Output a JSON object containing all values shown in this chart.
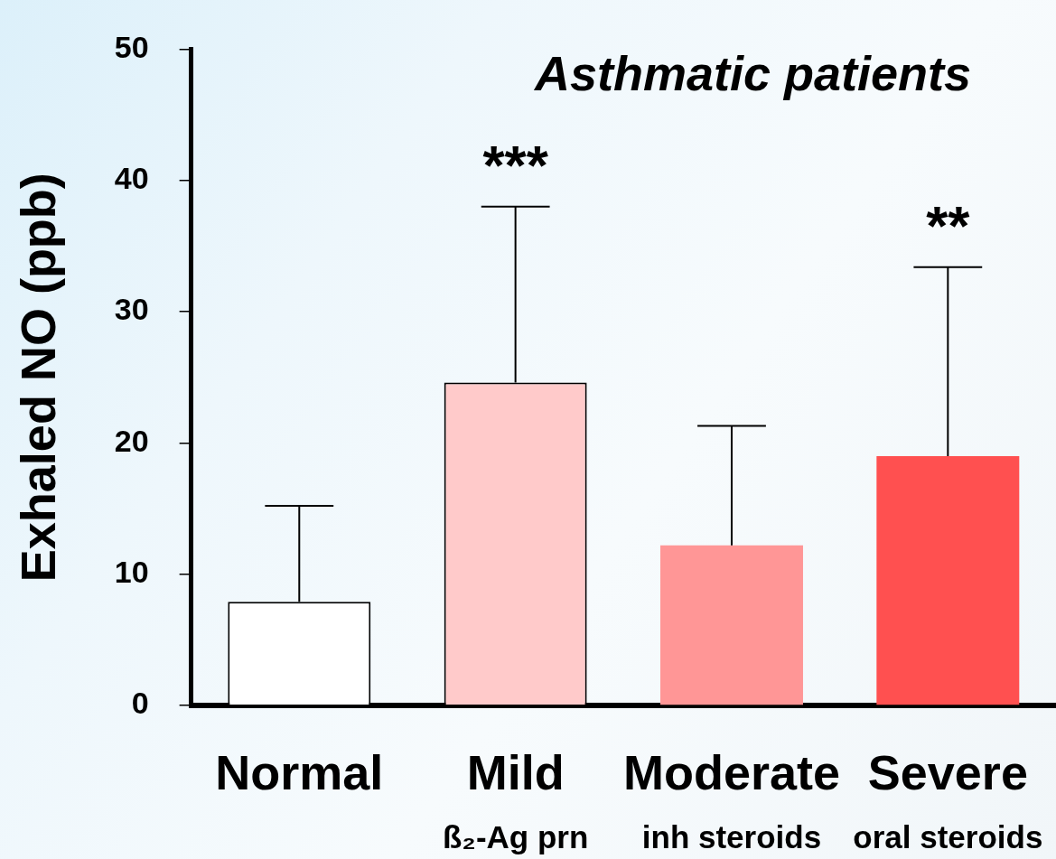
{
  "chart_data": {
    "type": "bar",
    "title": "Asthmatic patients",
    "ylabel": "Exhaled NO (ppb)",
    "categories": [
      "Normal",
      "Mild\nß₂-Ag prn",
      "Moderate\ninh steroids",
      "Severe\noral steroids"
    ],
    "values": [
      7.9,
      24.6,
      12.2,
      19.0
    ],
    "colors": [
      "#ffffff",
      "#ffcaca",
      "#ff9696",
      "#ff5050"
    ],
    "errors": [
      [
        7.9,
        15.2
      ],
      [
        24.6,
        38.0
      ],
      [
        12.2,
        21.3
      ],
      [
        19.0,
        33.4
      ]
    ],
    "ylim": [
      0,
      50
    ],
    "yticks": [
      0,
      10,
      20,
      30,
      40,
      50
    ],
    "grid": false,
    "legend": false,
    "annotations": [
      {
        "text": "***",
        "x": "Mild\nß₂-Ag prn",
        "y": 38.0
      },
      {
        "text": "**",
        "x": "Severe\noral steroids",
        "y": 33.4
      }
    ]
  }
}
